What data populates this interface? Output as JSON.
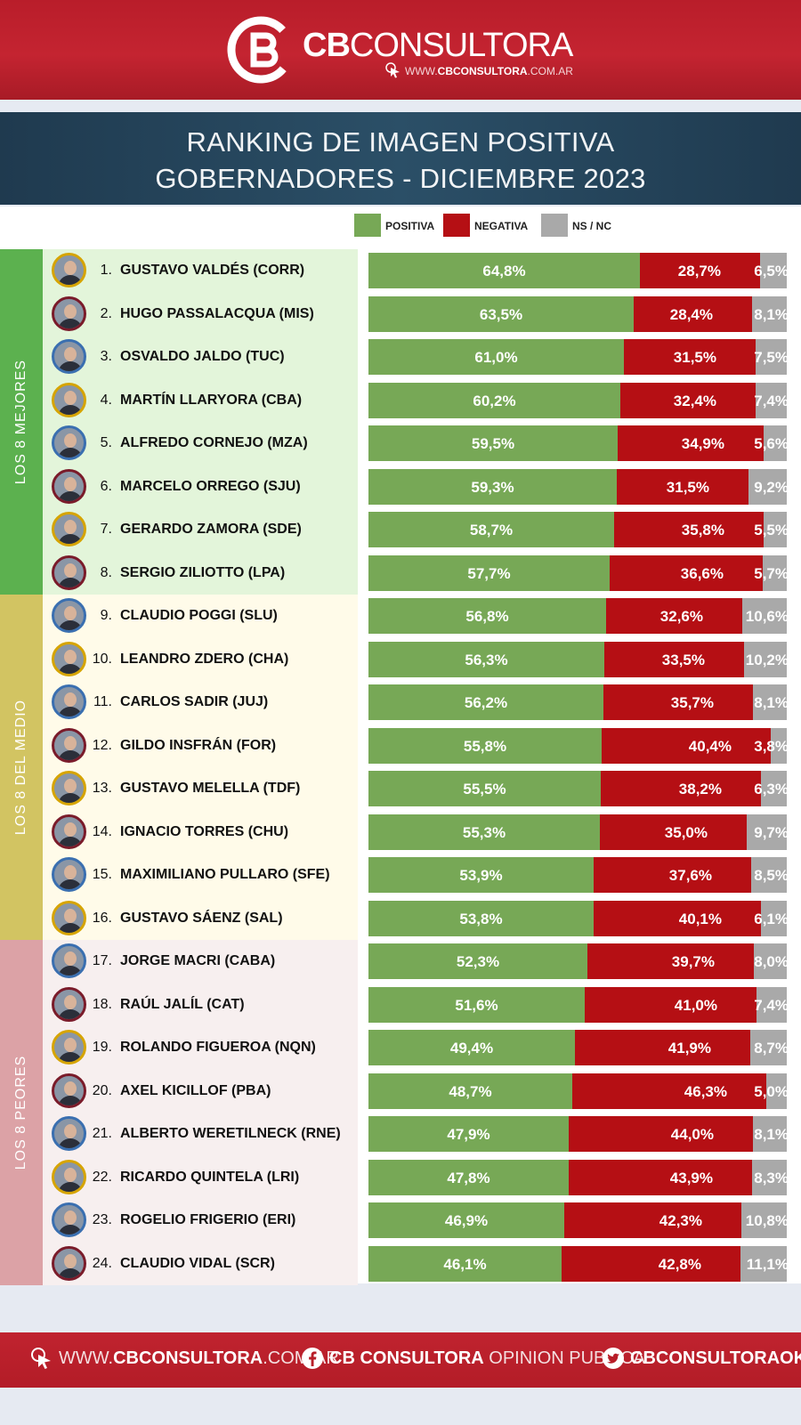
{
  "header": {
    "brand_bold": "CB",
    "brand_rest": "CONSULTORA",
    "url_prefix": "WWW.",
    "url_bold": "CBCONSULTORA",
    "url_suffix": ".COM.AR"
  },
  "title_line1": "RANKING DE IMAGEN POSITIVA",
  "title_line2": "GOBERNADORES - DICIEMBRE 2023",
  "colors": {
    "positiva": "#77a856",
    "negativa": "#b50f14",
    "nsnc": "#a9a9a9"
  },
  "chart_data": {
    "type": "bar",
    "orientation": "horizontal",
    "stacked": true,
    "xlim": [
      0,
      100
    ],
    "unit": "%",
    "legend": [
      "POSITIVA",
      "NEGATIVA",
      "NS / NC"
    ],
    "legend_placement": "top-right",
    "groups": [
      {
        "label": "LOS 8 MEJORES",
        "from": 1,
        "to": 8
      },
      {
        "label": "LOS 8 DEL MEDIO",
        "from": 9,
        "to": 16
      },
      {
        "label": "LOS 8 PEORES",
        "from": 17,
        "to": 24
      }
    ],
    "rows": [
      {
        "rank": "1.",
        "name": "GUSTAVO VALDÉS (CORR)",
        "positiva": 64.8,
        "negativa": 28.7,
        "nsnc": 6.5,
        "labels": [
          "64,8%",
          "28,7%",
          "6,5%"
        ]
      },
      {
        "rank": "2.",
        "name": "HUGO PASSALACQUA (MIS)",
        "positiva": 63.5,
        "negativa": 28.4,
        "nsnc": 8.1,
        "labels": [
          "63,5%",
          "28,4%",
          "8,1%"
        ]
      },
      {
        "rank": "3.",
        "name": "OSVALDO JALDO (TUC)",
        "positiva": 61.0,
        "negativa": 31.5,
        "nsnc": 7.5,
        "labels": [
          "61,0%",
          "31,5%",
          "7,5%"
        ]
      },
      {
        "rank": "4.",
        "name": "MARTÍN LLARYORA (CBA)",
        "positiva": 60.2,
        "negativa": 32.4,
        "nsnc": 7.4,
        "labels": [
          "60,2%",
          "32,4%",
          "7,4%"
        ]
      },
      {
        "rank": "5.",
        "name": "ALFREDO CORNEJO (MZA)",
        "positiva": 59.5,
        "negativa": 34.9,
        "nsnc": 5.6,
        "labels": [
          "59,5%",
          "34,9%",
          "5,6%"
        ]
      },
      {
        "rank": "6.",
        "name": "MARCELO ORREGO (SJU)",
        "positiva": 59.3,
        "negativa": 31.5,
        "nsnc": 9.2,
        "labels": [
          "59,3%",
          "31,5%",
          "9,2%"
        ]
      },
      {
        "rank": "7.",
        "name": "GERARDO ZAMORA (SDE)",
        "positiva": 58.7,
        "negativa": 35.8,
        "nsnc": 5.5,
        "labels": [
          "58,7%",
          "35,8%",
          "5,5%"
        ]
      },
      {
        "rank": "8.",
        "name": "SERGIO ZILIOTTO (LPA)",
        "positiva": 57.7,
        "negativa": 36.6,
        "nsnc": 5.7,
        "labels": [
          "57,7%",
          "36,6%",
          "5,7%"
        ]
      },
      {
        "rank": "9.",
        "name": "CLAUDIO POGGI (SLU)",
        "positiva": 56.8,
        "negativa": 32.6,
        "nsnc": 10.6,
        "labels": [
          "56,8%",
          "32,6%",
          "10,6%"
        ]
      },
      {
        "rank": "10.",
        "name": "LEANDRO ZDERO (CHA)",
        "positiva": 56.3,
        "negativa": 33.5,
        "nsnc": 10.2,
        "labels": [
          "56,3%",
          "33,5%",
          "10,2%"
        ]
      },
      {
        "rank": "11.",
        "name": "CARLOS SADIR (JUJ)",
        "positiva": 56.2,
        "negativa": 35.7,
        "nsnc": 8.1,
        "labels": [
          "56,2%",
          "35,7%",
          "8,1%"
        ]
      },
      {
        "rank": "12.",
        "name": "GILDO INSFRÁN (FOR)",
        "positiva": 55.8,
        "negativa": 40.4,
        "nsnc": 3.8,
        "labels": [
          "55,8%",
          "40,4%",
          "3,8%"
        ]
      },
      {
        "rank": "13.",
        "name": "GUSTAVO MELELLA (TDF)",
        "positiva": 55.5,
        "negativa": 38.2,
        "nsnc": 6.3,
        "labels": [
          "55,5%",
          "38,2%",
          "6,3%"
        ]
      },
      {
        "rank": "14.",
        "name": "IGNACIO TORRES (CHU)",
        "positiva": 55.3,
        "negativa": 35.0,
        "nsnc": 9.7,
        "labels": [
          "55,3%",
          "35,0%",
          "9,7%"
        ]
      },
      {
        "rank": "15.",
        "name": "MAXIMILIANO PULLARO (SFE)",
        "positiva": 53.9,
        "negativa": 37.6,
        "nsnc": 8.5,
        "labels": [
          "53,9%",
          "37,6%",
          "8,5%"
        ]
      },
      {
        "rank": "16.",
        "name": "GUSTAVO SÁENZ (SAL)",
        "positiva": 53.8,
        "negativa": 40.1,
        "nsnc": 6.1,
        "labels": [
          "53,8%",
          "40,1%",
          "6,1%"
        ]
      },
      {
        "rank": "17.",
        "name": "JORGE MACRI (CABA)",
        "positiva": 52.3,
        "negativa": 39.7,
        "nsnc": 8.0,
        "labels": [
          "52,3%",
          "39,7%",
          "8,0%"
        ]
      },
      {
        "rank": "18.",
        "name": "RAÚL JALÍL (CAT)",
        "positiva": 51.6,
        "negativa": 41.0,
        "nsnc": 7.4,
        "labels": [
          "51,6%",
          "41,0%",
          "7,4%"
        ]
      },
      {
        "rank": "19.",
        "name": "ROLANDO FIGUEROA (NQN)",
        "positiva": 49.4,
        "negativa": 41.9,
        "nsnc": 8.7,
        "labels": [
          "49,4%",
          "41,9%",
          "8,7%"
        ]
      },
      {
        "rank": "20.",
        "name": "AXEL KICILLOF (PBA)",
        "positiva": 48.7,
        "negativa": 46.3,
        "nsnc": 5.0,
        "labels": [
          "48,7%",
          "46,3%",
          "5,0%"
        ]
      },
      {
        "rank": "21.",
        "name": "ALBERTO WERETILNECK (RNE)",
        "positiva": 47.9,
        "negativa": 44.0,
        "nsnc": 8.1,
        "labels": [
          "47,9%",
          "44,0%",
          "8,1%"
        ]
      },
      {
        "rank": "22.",
        "name": "RICARDO QUINTELA (LRI)",
        "positiva": 47.8,
        "negativa": 43.9,
        "nsnc": 8.3,
        "labels": [
          "47,8%",
          "43,9%",
          "8,3%"
        ]
      },
      {
        "rank": "23.",
        "name": "ROGELIO FRIGERIO (ERI)",
        "positiva": 46.9,
        "negativa": 42.3,
        "nsnc": 10.8,
        "labels": [
          "46,9%",
          "42,3%",
          "10,8%"
        ]
      },
      {
        "rank": "24.",
        "name": "CLAUDIO VIDAL (SCR)",
        "positiva": 46.1,
        "negativa": 42.8,
        "nsnc": 11.1,
        "labels": [
          "46,1%",
          "42,8%",
          "11,1%"
        ]
      }
    ]
  },
  "footer": {
    "web_prefix": "WWW.",
    "web_bold": "CBCONSULTORA",
    "web_suffix": ".COM.AR",
    "fb_bold": "CB CONSULTORA",
    "fb_rest": " OPINION PUBLICA",
    "tw_bold": "CBCONSULTORAOK"
  }
}
